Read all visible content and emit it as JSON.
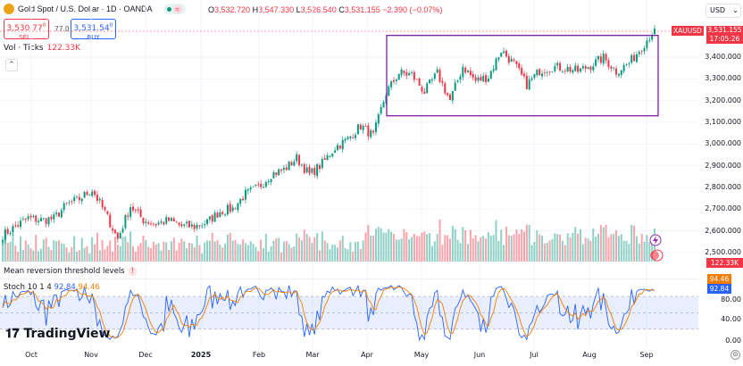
{
  "header": {
    "symbol_title": "Gold Spot / U.S. Dollar · 1D · OANDA",
    "open_label": "O",
    "open": "3,532.720",
    "high_label": "H",
    "high": "3,547.330",
    "low_label": "L",
    "low": "3,526.540",
    "close_label": "C",
    "close": "3,531.155",
    "change": "−2.390 (−0.07%)",
    "market_badge": "≈"
  },
  "trade": {
    "sell_price": "3,530.77",
    "sell_sup": "0",
    "sell_label": "SELL",
    "spread": "77.0",
    "buy_price": "3,531.54",
    "buy_sup": "0",
    "buy_label": "BUY"
  },
  "volume_indicator": {
    "label": "Vol · Ticks",
    "value": "122.33K",
    "tag": "122.33K"
  },
  "currency": "USD",
  "price_axis": {
    "labels": [
      "3,400.000",
      "3,300.000",
      "3,200.000",
      "3,100.000",
      "3,000.000",
      "2,900.000",
      "2,800.000",
      "2,700.000",
      "2,600.000",
      "2,500.000"
    ],
    "levels": [
      3400,
      3300,
      3200,
      3100,
      3000,
      2900,
      2800,
      2700,
      2600,
      2500
    ],
    "symbol_tag": "XAUUSD",
    "last_price": "3,531.155",
    "countdown": "17:05:26"
  },
  "indicator_title": "Mean reversion threshold levels",
  "indicator_alert": "!",
  "stoch": {
    "label": "Stoch 10 1 4",
    "k": "92.84",
    "d": "94.46",
    "axis": [
      "80.00",
      "40.00",
      "0.00"
    ],
    "k_color": "#2962ff",
    "d_color": "#f57c00"
  },
  "brand": "TradingView",
  "time_axis": [
    "Oct",
    "Nov",
    "Dec",
    "2025",
    "Feb",
    "Mar",
    "Apr",
    "May",
    "Jun",
    "Jul",
    "Aug",
    "Sep"
  ],
  "colors": {
    "up": "#089981",
    "down": "#f23645",
    "box": "#7b1fa2"
  },
  "rectangle": {
    "top_price": 3500,
    "bottom_price": 3130
  },
  "chart_data": {
    "type": "candlestick",
    "interval": "1D",
    "weekly_closes": [
      2580,
      2620,
      2658,
      2650,
      2657,
      2720,
      2747,
      2790,
      2685,
      2563,
      2715,
      2650,
      2633,
      2648,
      2622,
      2620,
      2640,
      2690,
      2702,
      2770,
      2800,
      2860,
      2882,
      2935,
      2858,
      2910,
      2984,
      3022,
      3084,
      3037,
      3237,
      3327,
      3319,
      3240,
      3325,
      3200,
      3357,
      3290,
      3310,
      3432,
      3368,
      3273,
      3337,
      3355,
      3350,
      3336,
      3362,
      3397,
      3335,
      3371,
      3447,
      3531
    ]
  }
}
